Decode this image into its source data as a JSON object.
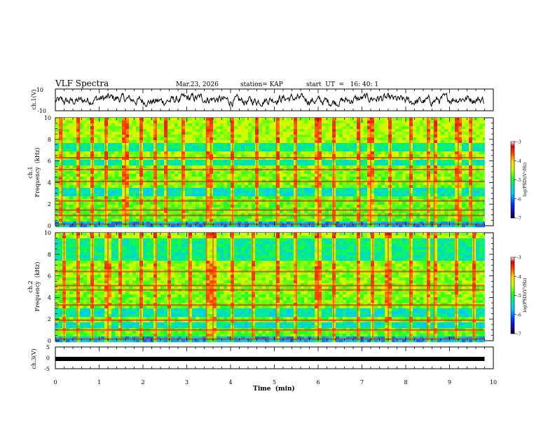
{
  "header": {
    "title": "VLF Spectra",
    "date": "Mar.23, 2026",
    "station": "station= KAP",
    "start": "start  UT  =   16: 40: 1"
  },
  "colors": {
    "background": "#ffffff",
    "axis": "#000000",
    "waveform": "#000000"
  },
  "chart_data": [
    {
      "id": "ch1-waveform",
      "type": "line",
      "ylabel": "ch.1(V)",
      "ylim": [
        -10,
        10
      ],
      "y_ticks": [
        "10",
        "-10"
      ],
      "xlim": [
        0,
        10
      ],
      "x_end_data": 9.8,
      "amplitude_range": [
        -6,
        6
      ]
    },
    {
      "id": "ch1-spectrogram",
      "type": "heatmap",
      "ylabel_top": "ch.1",
      "ylabel": "Frequency  (kHz)",
      "ylim": [
        0,
        10
      ],
      "y_ticks": [
        "0",
        "2",
        "4",
        "6",
        "8",
        "10"
      ],
      "xlim": [
        0,
        10
      ],
      "x_end_data": 9.8,
      "colorbar": {
        "label": "log(PSD)(V²/Hz)",
        "range": [
          -7,
          -3
        ],
        "ticks": [
          "-3",
          "-4",
          "-5",
          "-6",
          "-7"
        ]
      },
      "strong_bands_khz": [
        0.15,
        0.95,
        1.45,
        2.3,
        4.1,
        5.2,
        6.3
      ],
      "quiet_bands_khz": [
        [
          2.8,
          3.4
        ],
        [
          5.6,
          6.1
        ],
        [
          7.0,
          7.6
        ]
      ],
      "impulse_times_min": [
        0.15,
        0.55,
        0.85,
        1.15,
        1.6,
        1.95,
        2.3,
        2.55,
        2.9,
        3.45,
        3.55,
        4.05,
        4.6,
        5.05,
        5.5,
        6.0,
        6.35,
        6.95,
        7.2,
        7.65,
        8.1,
        8.5,
        8.65,
        9.2,
        9.5
      ]
    },
    {
      "id": "ch2-spectrogram",
      "type": "heatmap",
      "ylabel_top": "ch.2",
      "ylabel": "Frequency  (kHz)",
      "ylim": [
        0,
        10
      ],
      "y_ticks": [
        "0",
        "2",
        "4",
        "6",
        "8",
        "10"
      ],
      "xlim": [
        0,
        10
      ],
      "x_end_data": 9.8,
      "colorbar": {
        "label": "log(PSD)(V²/Hz)",
        "range": [
          -7,
          -3
        ],
        "ticks": [
          "-3",
          "-4",
          "-5",
          "-6",
          "-7"
        ]
      },
      "strong_bands_khz": [
        0.15,
        1.0,
        1.9,
        3.3,
        4.7,
        5.1,
        6.4
      ],
      "quiet_bands_khz": [
        [
          1.2,
          1.7
        ],
        [
          2.2,
          3.0
        ],
        [
          7.5,
          9.5
        ]
      ],
      "impulse_times_min": [
        0.2,
        0.5,
        0.85,
        1.2,
        1.5,
        1.95,
        2.3,
        2.6,
        3.05,
        3.45,
        3.6,
        4.05,
        4.5,
        5.05,
        5.5,
        6.0,
        6.35,
        6.9,
        7.25,
        7.6,
        8.1,
        8.5,
        8.65,
        9.15,
        9.55
      ]
    },
    {
      "id": "ch3-trace",
      "type": "line",
      "ylabel": "ch.3(V)",
      "ylim": [
        -5,
        5
      ],
      "y_ticks": [
        "5",
        "0",
        "-5"
      ],
      "xlim": [
        0,
        10
      ],
      "x_end_data": 9.8,
      "level": -0.5,
      "xlabel": "Time  (min)",
      "x_ticks": [
        "0",
        "1",
        "2",
        "3",
        "4",
        "5",
        "6",
        "7",
        "8",
        "9",
        "10"
      ]
    }
  ]
}
